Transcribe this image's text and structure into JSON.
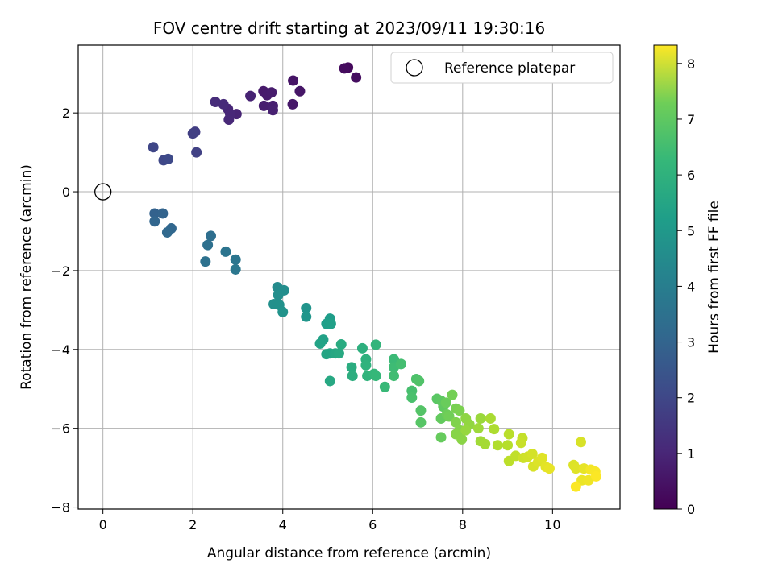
{
  "chart_data": {
    "type": "scatter",
    "title": "FOV centre drift starting at 2023/09/11 19:30:16",
    "xlabel": "Angular distance from reference (arcmin)",
    "ylabel": "Rotation from reference (arcmin)",
    "xlim": [
      -0.55,
      11.5
    ],
    "ylim": [
      -8.05,
      3.72
    ],
    "xticks": [
      0,
      2,
      4,
      6,
      8,
      10
    ],
    "yticks": [
      -8,
      -6,
      -4,
      -2,
      0,
      2
    ],
    "grid": true,
    "legend": {
      "placement": "upper right",
      "entries": [
        "Reference platepar"
      ]
    },
    "reference_point": {
      "x": 0,
      "y": 0
    },
    "colorbar": {
      "label": "Hours from first FF file",
      "range": [
        0,
        8.33
      ],
      "ticks": [
        0,
        1,
        2,
        3,
        4,
        5,
        6,
        7,
        8
      ],
      "colormap": "viridis"
    },
    "series": [
      {
        "points": [
          [
            5.45,
            3.15,
            0.2
          ],
          [
            5.37,
            3.13,
            0.25
          ],
          [
            5.63,
            2.9,
            0.3
          ],
          [
            4.23,
            2.82,
            0.45
          ],
          [
            4.38,
            2.55,
            0.5
          ],
          [
            4.22,
            2.22,
            0.55
          ],
          [
            3.57,
            2.55,
            0.6
          ],
          [
            3.65,
            2.45,
            0.62
          ],
          [
            3.75,
            2.52,
            0.65
          ],
          [
            3.58,
            2.18,
            0.7
          ],
          [
            3.78,
            2.18,
            0.72
          ],
          [
            3.78,
            2.07,
            0.75
          ],
          [
            3.28,
            2.43,
            0.8
          ],
          [
            2.97,
            1.97,
            0.85
          ],
          [
            2.78,
            2.1,
            0.9
          ],
          [
            2.83,
            1.97,
            0.93
          ],
          [
            2.8,
            1.83,
            0.95
          ],
          [
            2.68,
            2.22,
            1.0
          ],
          [
            2.5,
            2.28,
            1.05
          ],
          [
            2.05,
            1.52,
            1.5
          ],
          [
            2.0,
            1.48,
            1.55
          ],
          [
            2.08,
            1.0,
            1.6
          ],
          [
            1.12,
            1.13,
            1.75
          ],
          [
            1.35,
            0.8,
            1.8
          ],
          [
            1.45,
            0.83,
            1.85
          ],
          [
            1.15,
            -0.55,
            2.6
          ],
          [
            1.33,
            -0.55,
            2.65
          ],
          [
            1.15,
            -0.75,
            2.7
          ],
          [
            1.52,
            -0.93,
            2.75
          ],
          [
            1.43,
            -1.03,
            2.8
          ],
          [
            2.4,
            -1.12,
            3.0
          ],
          [
            2.33,
            -1.35,
            3.05
          ],
          [
            2.28,
            -1.77,
            3.1
          ],
          [
            2.73,
            -1.52,
            3.2
          ],
          [
            2.95,
            -1.72,
            3.25
          ],
          [
            2.95,
            -1.97,
            3.3
          ],
          [
            3.88,
            -2.42,
            4.0
          ],
          [
            4.03,
            -2.5,
            4.05
          ],
          [
            3.9,
            -2.62,
            4.1
          ],
          [
            3.8,
            -2.85,
            4.15
          ],
          [
            3.92,
            -2.87,
            4.2
          ],
          [
            4.0,
            -3.05,
            4.25
          ],
          [
            4.52,
            -2.95,
            4.3
          ],
          [
            4.52,
            -3.17,
            4.35
          ],
          [
            5.05,
            -3.22,
            4.6
          ],
          [
            4.97,
            -3.35,
            4.65
          ],
          [
            5.07,
            -3.35,
            4.7
          ],
          [
            4.9,
            -3.75,
            4.75
          ],
          [
            4.83,
            -3.85,
            4.8
          ],
          [
            5.05,
            -4.1,
            4.85
          ],
          [
            4.97,
            -4.12,
            4.9
          ],
          [
            5.17,
            -4.1,
            4.95
          ],
          [
            5.05,
            -4.8,
            5.0
          ],
          [
            5.25,
            -4.1,
            5.05
          ],
          [
            5.3,
            -3.87,
            5.1
          ],
          [
            5.53,
            -4.45,
            5.15
          ],
          [
            5.55,
            -4.67,
            5.2
          ],
          [
            5.77,
            -3.97,
            5.25
          ],
          [
            5.85,
            -4.25,
            5.3
          ],
          [
            5.85,
            -4.4,
            5.35
          ],
          [
            5.88,
            -4.67,
            5.4
          ],
          [
            6.07,
            -3.88,
            5.45
          ],
          [
            6.03,
            -4.62,
            5.5
          ],
          [
            6.07,
            -4.67,
            5.55
          ],
          [
            6.27,
            -4.95,
            5.6
          ],
          [
            6.47,
            -4.25,
            5.65
          ],
          [
            6.47,
            -4.45,
            5.7
          ],
          [
            6.47,
            -4.67,
            5.75
          ],
          [
            6.63,
            -4.37,
            5.8
          ],
          [
            6.87,
            -5.05,
            5.85
          ],
          [
            6.87,
            -5.22,
            5.9
          ],
          [
            6.97,
            -4.75,
            5.95
          ],
          [
            7.03,
            -4.8,
            6.0
          ],
          [
            7.07,
            -5.55,
            6.05
          ],
          [
            7.07,
            -5.85,
            6.1
          ],
          [
            7.43,
            -5.25,
            6.15
          ],
          [
            7.52,
            -5.3,
            6.2
          ],
          [
            7.57,
            -5.45,
            6.25
          ],
          [
            7.52,
            -5.75,
            6.3
          ],
          [
            7.52,
            -6.23,
            6.35
          ],
          [
            7.63,
            -5.35,
            6.4
          ],
          [
            7.65,
            -5.65,
            6.45
          ],
          [
            7.7,
            -5.7,
            6.5
          ],
          [
            7.77,
            -5.15,
            6.55
          ],
          [
            7.85,
            -5.5,
            6.6
          ],
          [
            7.93,
            -5.55,
            6.65
          ],
          [
            7.85,
            -5.85,
            6.7
          ],
          [
            7.93,
            -6.05,
            6.75
          ],
          [
            7.85,
            -6.15,
            6.8
          ],
          [
            7.98,
            -6.28,
            6.85
          ],
          [
            8.07,
            -5.75,
            6.9
          ],
          [
            8.15,
            -5.9,
            6.95
          ],
          [
            8.07,
            -6.05,
            7.0
          ],
          [
            8.4,
            -5.75,
            7.05
          ],
          [
            8.35,
            -6.0,
            7.1
          ],
          [
            8.4,
            -6.33,
            7.15
          ],
          [
            8.5,
            -6.4,
            7.2
          ],
          [
            8.62,
            -5.75,
            7.25
          ],
          [
            8.7,
            -6.02,
            7.3
          ],
          [
            8.78,
            -6.43,
            7.35
          ],
          [
            9.0,
            -6.43,
            7.4
          ],
          [
            9.03,
            -6.15,
            7.45
          ],
          [
            9.03,
            -6.83,
            7.5
          ],
          [
            9.18,
            -6.7,
            7.55
          ],
          [
            9.33,
            -6.25,
            7.6
          ],
          [
            9.3,
            -6.37,
            7.65
          ],
          [
            9.35,
            -6.75,
            7.7
          ],
          [
            9.45,
            -6.72,
            7.75
          ],
          [
            9.55,
            -6.65,
            7.8
          ],
          [
            9.57,
            -6.97,
            7.85
          ],
          [
            9.68,
            -6.85,
            7.9
          ],
          [
            9.77,
            -6.75,
            7.95
          ],
          [
            9.85,
            -6.98,
            8.0
          ],
          [
            9.93,
            -7.02,
            8.05
          ],
          [
            10.47,
            -6.93,
            7.9
          ],
          [
            10.52,
            -7.02,
            7.95
          ],
          [
            10.63,
            -6.35,
            7.85
          ],
          [
            10.7,
            -7.02,
            8.05
          ],
          [
            10.65,
            -7.32,
            8.1
          ],
          [
            10.8,
            -7.32,
            8.15
          ],
          [
            10.85,
            -7.05,
            8.2
          ],
          [
            10.95,
            -7.1,
            8.25
          ],
          [
            10.97,
            -7.22,
            8.3
          ],
          [
            10.52,
            -7.48,
            8.3
          ]
        ]
      }
    ]
  }
}
